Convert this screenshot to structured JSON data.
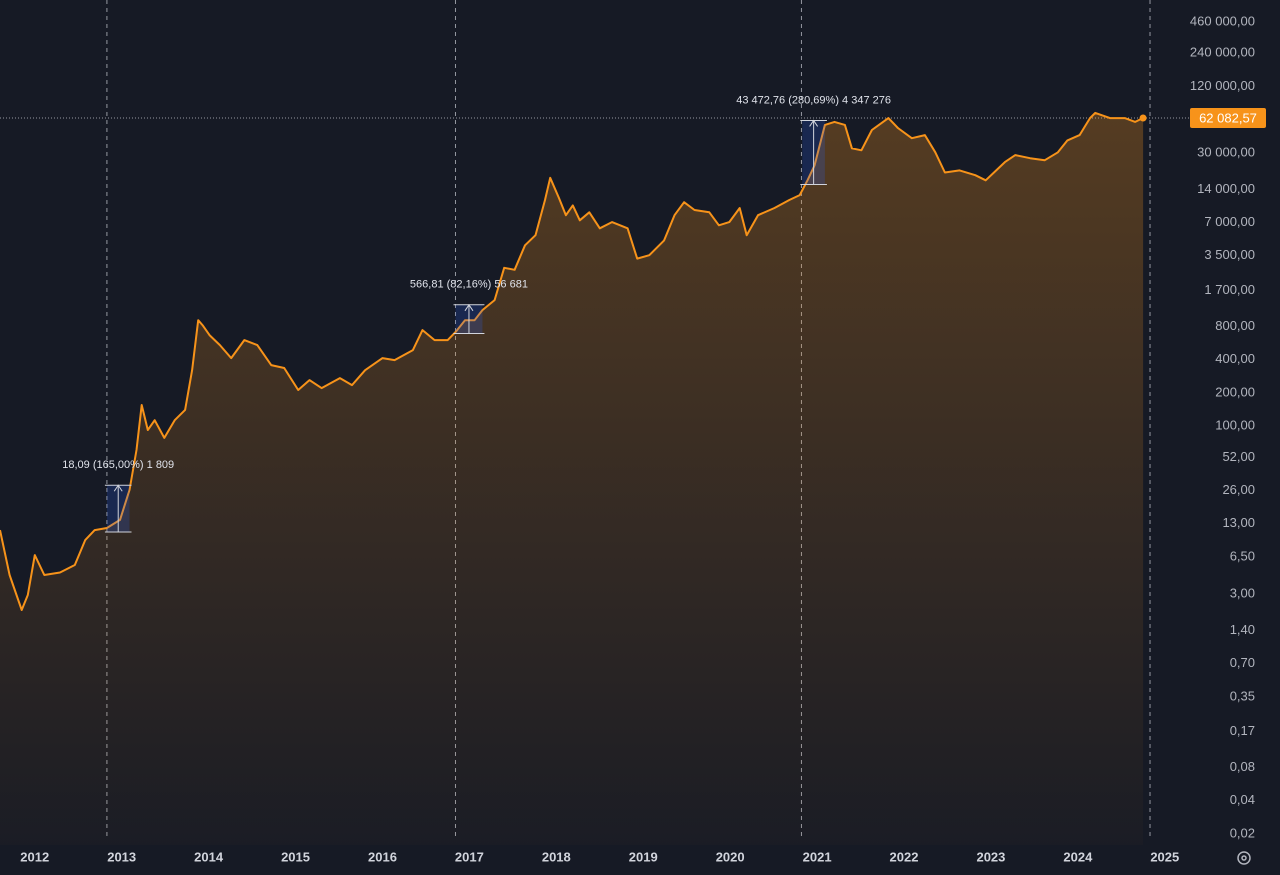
{
  "chart_data": {
    "type": "line",
    "log_scale": true,
    "grid": false,
    "color": "#f7931a",
    "x": [
      2011.6,
      2011.71,
      2011.85,
      2011.92,
      2012.0,
      2012.11,
      2012.29,
      2012.46,
      2012.58,
      2012.69,
      2012.83,
      2012.98,
      2013.09,
      2013.17,
      2013.23,
      2013.3,
      2013.38,
      2013.49,
      2013.61,
      2013.73,
      2013.81,
      2013.88,
      2013.93,
      2014.01,
      2014.13,
      2014.26,
      2014.41,
      2014.56,
      2014.72,
      2014.87,
      2015.03,
      2015.16,
      2015.3,
      2015.51,
      2015.65,
      2015.8,
      2016.0,
      2016.14,
      2016.35,
      2016.46,
      2016.6,
      2016.75,
      2016.84,
      2016.95,
      2017.06,
      2017.15,
      2017.29,
      2017.4,
      2017.52,
      2017.64,
      2017.76,
      2017.87,
      2017.93,
      2018.03,
      2018.11,
      2018.19,
      2018.27,
      2018.38,
      2018.5,
      2018.64,
      2018.82,
      2018.93,
      2019.07,
      2019.24,
      2019.36,
      2019.47,
      2019.59,
      2019.76,
      2019.87,
      2019.99,
      2020.11,
      2020.19,
      2020.32,
      2020.51,
      2020.68,
      2020.8,
      2020.89,
      2020.97,
      2021.09,
      2021.2,
      2021.32,
      2021.4,
      2021.51,
      2021.63,
      2021.82,
      2021.93,
      2022.09,
      2022.24,
      2022.36,
      2022.47,
      2022.64,
      2022.82,
      2022.94,
      2023.06,
      2023.16,
      2023.28,
      2023.45,
      2023.62,
      2023.77,
      2023.88,
      2024.02,
      2024.14,
      2024.2,
      2024.37,
      2024.54,
      2024.66,
      2024.75
    ],
    "values": [
      11.4,
      4.46,
      2.15,
      2.94,
      6.76,
      4.46,
      4.7,
      5.5,
      9.25,
      11.4,
      11.9,
      14.1,
      26.3,
      60.6,
      155,
      92,
      113,
      78,
      113,
      140,
      321,
      912,
      822,
      668,
      542,
      413,
      602,
      542,
      357,
      336,
      212,
      261,
      221,
      272,
      235,
      321,
      413,
      396,
      488,
      741,
      602,
      602,
      710,
      912,
      912,
      1125,
      1385,
      2720,
      2610,
      4350,
      5370,
      11200,
      17800,
      11700,
      8150,
      10000,
      7330,
      8670,
      6200,
      7060,
      6200,
      3300,
      3540,
      4820,
      8150,
      10700,
      9100,
      8670,
      6610,
      7060,
      9480,
      5370,
      8150,
      9480,
      11200,
      12400,
      16900,
      23000,
      53700,
      57200,
      53700,
      33000,
      31600,
      48300,
      62000,
      50400,
      40700,
      43400,
      30300,
      19900,
      20800,
      18800,
      16900,
      20800,
      24700,
      28600,
      26800,
      25700,
      30300,
      38900,
      43400,
      62000,
      69000,
      62000,
      62000,
      57200,
      62082.57
    ],
    "xlim": [
      2011.6,
      2025.29
    ],
    "xticks": [
      2012,
      2013,
      2014,
      2015,
      2016,
      2017,
      2018,
      2019,
      2020,
      2021,
      2022,
      2023,
      2024,
      2025
    ],
    "ylim": [
      0.0159,
      729000
    ],
    "yticks": [
      {
        "value": 460000,
        "label": "460 000,00"
      },
      {
        "value": 240000,
        "label": "240 000,00"
      },
      {
        "value": 120000,
        "label": "120 000,00"
      },
      {
        "value": 30000,
        "label": "30 000,00"
      },
      {
        "value": 14000,
        "label": "14 000,00"
      },
      {
        "value": 7000,
        "label": "7 000,00"
      },
      {
        "value": 3500,
        "label": "3 500,00"
      },
      {
        "value": 1700,
        "label": "1 700,00"
      },
      {
        "value": 800,
        "label": "800,00"
      },
      {
        "value": 400,
        "label": "400,00"
      },
      {
        "value": 200,
        "label": "200,00"
      },
      {
        "value": 100,
        "label": "100,00"
      },
      {
        "value": 52,
        "label": "52,00"
      },
      {
        "value": 26,
        "label": "26,00"
      },
      {
        "value": 13,
        "label": "13,00"
      },
      {
        "value": 6.5,
        "label": "6,50"
      },
      {
        "value": 3,
        "label": "3,00"
      },
      {
        "value": 1.4,
        "label": "1,40"
      },
      {
        "value": 0.7,
        "label": "0,70"
      },
      {
        "value": 0.35,
        "label": "0,35"
      },
      {
        "value": 0.17,
        "label": "0,17"
      },
      {
        "value": 0.08,
        "label": "0,08"
      },
      {
        "value": 0.04,
        "label": "0,04"
      },
      {
        "value": 0.02,
        "label": "0,02"
      }
    ],
    "last_price": {
      "value": 62082.57,
      "label": "62 082,57"
    },
    "vlines": [
      2012.83,
      2016.84,
      2020.82,
      2024.83
    ],
    "annotations": [
      {
        "text": "18,09 (165,00%) 1 809",
        "x": [
          2012.83,
          2013.09
        ],
        "y": [
          10.96,
          29.05
        ]
      },
      {
        "text": "566,81 (82,16%) 56 681",
        "x": [
          2016.84,
          2017.15
        ],
        "y": [
          689.9,
          1256.7
        ]
      },
      {
        "text": "43 472,76 (280,69%) 4 347 276",
        "x": [
          2020.83,
          2021.09
        ],
        "y": [
          15488,
          58961
        ]
      }
    ]
  }
}
